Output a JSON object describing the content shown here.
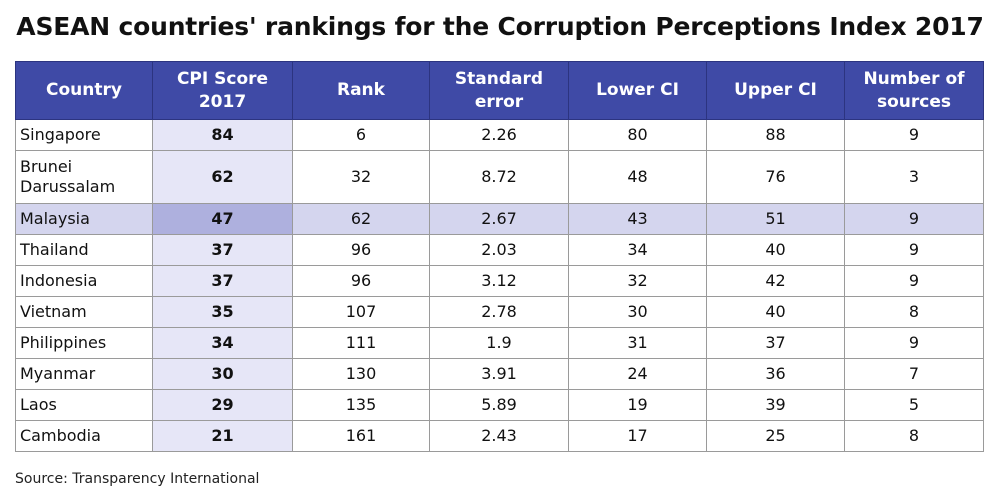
{
  "title": "ASEAN countries' rankings for the Corruption Perceptions Index 2017",
  "source": "Source: Transparency International",
  "colors": {
    "header_bg": "#3f4aa6",
    "score_column_bg": "#e6e6f7",
    "highlight_row_bg": "#d4d5ee",
    "highlight_score_bg": "#aeb0de"
  },
  "chart_data": {
    "type": "table",
    "title": "ASEAN countries' rankings for the Corruption Perceptions Index 2017",
    "columns": [
      "Country",
      "CPI Score 2017",
      "Rank",
      "Standard error",
      "Lower CI",
      "Upper CI",
      "Number of sources"
    ],
    "rows": [
      [
        "Singapore",
        "84",
        "6",
        "2.26",
        "80",
        "88",
        "9"
      ],
      [
        "Brunei Darussalam",
        "62",
        "32",
        "8.72",
        "48",
        "76",
        "3"
      ],
      [
        "Malaysia",
        "47",
        "62",
        "2.67",
        "43",
        "51",
        "9"
      ],
      [
        "Thailand",
        "37",
        "96",
        "2.03",
        "34",
        "40",
        "9"
      ],
      [
        "Indonesia",
        "37",
        "96",
        "3.12",
        "32",
        "42",
        "9"
      ],
      [
        "Vietnam",
        "35",
        "107",
        "2.78",
        "30",
        "40",
        "8"
      ],
      [
        "Philippines",
        "34",
        "111",
        "1.9",
        "31",
        "37",
        "9"
      ],
      [
        "Myanmar",
        "30",
        "130",
        "3.91",
        "24",
        "36",
        "7"
      ],
      [
        "Laos",
        "29",
        "135",
        "5.89",
        "19",
        "39",
        "5"
      ],
      [
        "Cambodia",
        "21",
        "161",
        "2.43",
        "17",
        "25",
        "8"
      ]
    ],
    "highlighted_row": "Malaysia"
  }
}
